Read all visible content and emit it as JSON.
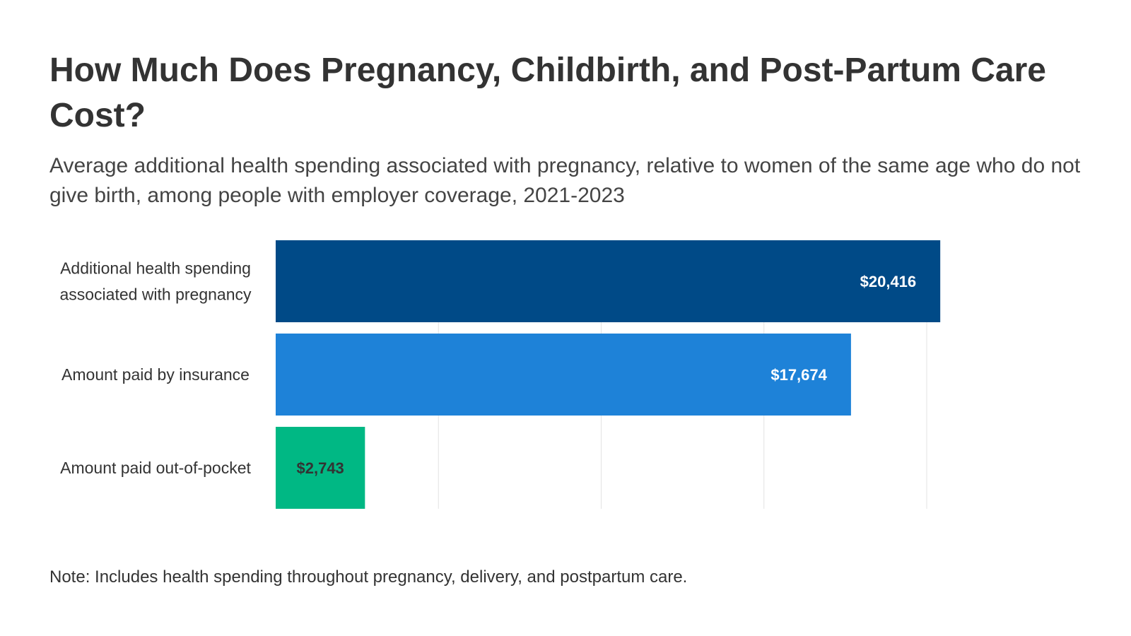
{
  "title": "How Much Does Pregnancy, Childbirth, and Post-Partum Care Cost?",
  "subtitle": "Average additional health spending associated with pregnancy, relative to women of the same age who do not give birth, among people with employer coverage, 2021-2023",
  "note": "Note: Includes health spending throughout pregnancy, delivery, and postpartum care.",
  "chart_data": {
    "type": "bar",
    "orientation": "horizontal",
    "title": "How Much Does Pregnancy, Childbirth, and Post-Partum Care Cost?",
    "xlabel": "",
    "ylabel": "",
    "xlim": [
      0,
      20000
    ],
    "grid": true,
    "categories": [
      [
        "Additional health spending",
        "associated with pregnancy"
      ],
      [
        "Amount paid by insurance"
      ],
      [
        "Amount paid out-of-pocket"
      ]
    ],
    "values": [
      20416,
      17674,
      2743
    ],
    "value_labels": [
      "$20,416",
      "$17,674",
      "$2,743"
    ],
    "colors": [
      "#004a87",
      "#1e82d8",
      "#00b884"
    ],
    "label_colors": [
      "#ffffff",
      "#ffffff",
      "#333333"
    ],
    "label_inside": [
      true,
      true,
      false
    ]
  }
}
